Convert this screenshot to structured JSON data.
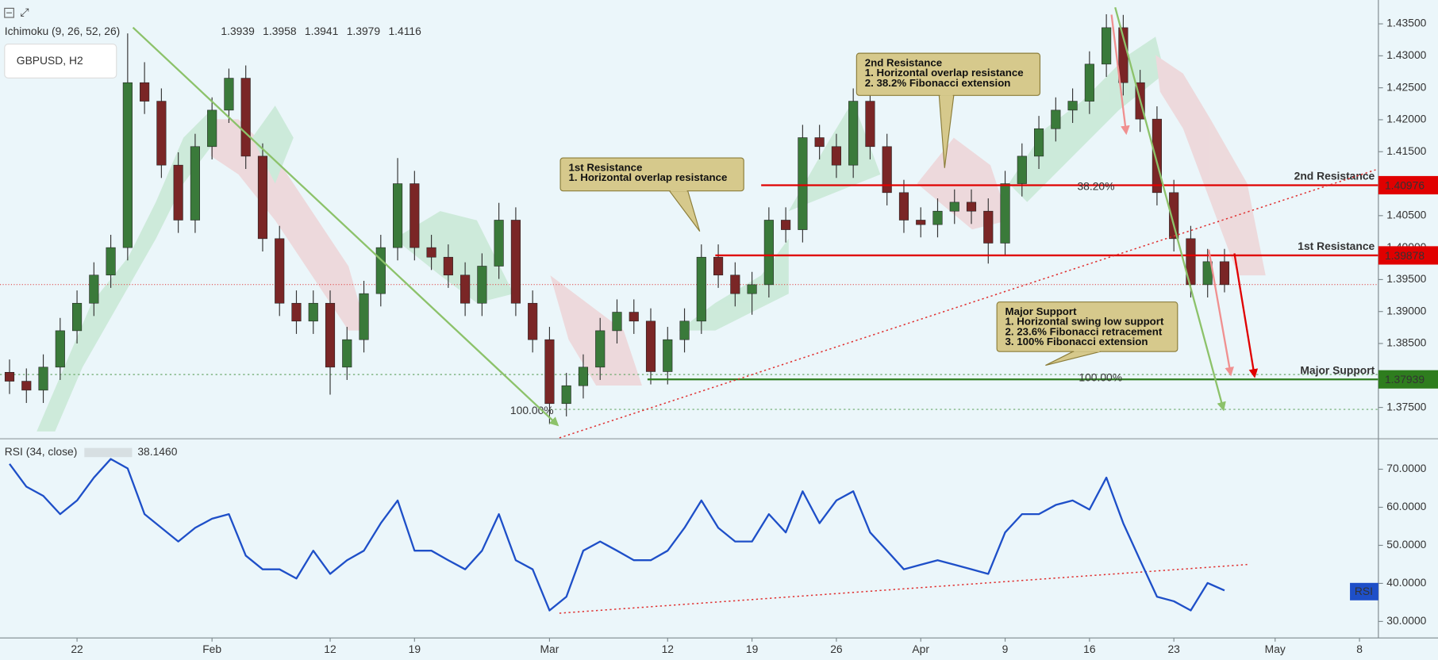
{
  "chart_data": [
    {
      "type": "candlestick",
      "title": "GBPUSD, H2",
      "indicator": "Ichimoku (9, 26, 52, 26)",
      "indicator_values": [
        {
          "label": "1.3939",
          "color": "#2196f3"
        },
        {
          "label": "1.3958",
          "color": "#880e0e"
        },
        {
          "label": "1.3941",
          "color": "#388e3c"
        },
        {
          "label": "1.3979",
          "color": "#1b5e20"
        },
        {
          "label": "1.4116",
          "color": "#e00000"
        }
      ],
      "up_color": "#3a7a3a",
      "down_color": "#7a2626",
      "x": [
        -4,
        -3,
        -2,
        -1,
        0,
        1,
        2,
        3,
        4,
        5,
        6,
        7,
        8,
        9,
        10,
        11,
        12,
        13,
        14,
        15,
        16,
        17,
        18,
        19,
        20,
        21,
        22,
        23,
        24,
        25,
        26,
        27,
        28,
        29,
        30,
        31,
        32,
        33,
        34,
        35,
        36,
        37,
        38,
        39,
        40,
        41,
        42,
        43,
        44,
        45,
        46,
        47,
        48,
        49,
        50,
        51,
        52,
        53,
        54,
        55,
        56,
        57,
        58,
        59,
        60,
        61,
        62,
        63,
        64,
        65,
        66,
        67,
        68
      ],
      "open": [
        1.3805,
        1.3791,
        1.3777,
        1.3813,
        1.387,
        1.3913,
        1.3957,
        1.4,
        1.4258,
        1.4229,
        1.4129,
        1.4043,
        1.4158,
        1.4215,
        1.4265,
        1.4143,
        1.4014,
        1.3913,
        1.3885,
        1.3913,
        1.3813,
        1.3856,
        1.3928,
        1.4,
        1.41,
        1.4,
        1.3985,
        1.3957,
        1.3913,
        1.3971,
        1.4043,
        1.3913,
        1.3856,
        1.3756,
        1.3784,
        1.3813,
        1.387,
        1.3899,
        1.3885,
        1.3806,
        1.3856,
        1.3885,
        1.3985,
        1.3957,
        1.3928,
        1.3942,
        1.4043,
        1.4028,
        1.4172,
        1.4158,
        1.4129,
        1.4229,
        1.4158,
        1.4086,
        1.4043,
        1.4036,
        1.4057,
        1.4071,
        1.4057,
        1.4007,
        1.41,
        1.4143,
        1.4186,
        1.4215,
        1.4229,
        1.4287,
        1.4344,
        1.4258,
        1.4201,
        1.4086,
        1.4014,
        1.3942,
        1.3978
      ],
      "high": [
        1.3825,
        1.3811,
        1.3833,
        1.389,
        1.3933,
        1.3977,
        1.402,
        1.4335,
        1.429,
        1.4249,
        1.4149,
        1.4178,
        1.4235,
        1.428,
        1.4285,
        1.4163,
        1.4034,
        1.3933,
        1.3933,
        1.3933,
        1.3876,
        1.3948,
        1.402,
        1.414,
        1.412,
        1.402,
        1.4005,
        1.3977,
        1.3991,
        1.407,
        1.4063,
        1.3933,
        1.3876,
        1.3804,
        1.3833,
        1.389,
        1.3919,
        1.3919,
        1.3905,
        1.3876,
        1.3905,
        1.4005,
        1.4005,
        1.3977,
        1.3962,
        1.4063,
        1.4063,
        1.4192,
        1.4192,
        1.4178,
        1.4249,
        1.4249,
        1.4178,
        1.4106,
        1.4063,
        1.4077,
        1.4091,
        1.4091,
        1.4077,
        1.412,
        1.4163,
        1.4206,
        1.4235,
        1.4249,
        1.4307,
        1.4365,
        1.4364,
        1.4278,
        1.4221,
        1.4106,
        1.4034,
        1.3998,
        1.3998
      ],
      "low": [
        1.3771,
        1.3757,
        1.3757,
        1.3793,
        1.385,
        1.3893,
        1.3937,
        1.398,
        1.4209,
        1.4109,
        1.4023,
        1.4023,
        1.4138,
        1.4195,
        1.4123,
        1.3994,
        1.3893,
        1.3865,
        1.3865,
        1.377,
        1.3793,
        1.3836,
        1.3908,
        1.398,
        1.398,
        1.3965,
        1.3937,
        1.3893,
        1.3893,
        1.3951,
        1.3893,
        1.3836,
        1.3724,
        1.3736,
        1.3764,
        1.3793,
        1.385,
        1.3865,
        1.3786,
        1.3786,
        1.3836,
        1.3865,
        1.3937,
        1.3908,
        1.3895,
        1.3922,
        1.4008,
        1.4008,
        1.4138,
        1.4109,
        1.4109,
        1.4138,
        1.4066,
        1.4023,
        1.4016,
        1.4016,
        1.4037,
        1.4037,
        1.3975,
        1.3987,
        1.408,
        1.4123,
        1.4166,
        1.4195,
        1.4209,
        1.4267,
        1.4238,
        1.4181,
        1.4066,
        1.3994,
        1.3922,
        1.3922,
        1.393
      ],
      "close": [
        1.3791,
        1.3777,
        1.3813,
        1.387,
        1.3913,
        1.3957,
        1.4,
        1.4258,
        1.4229,
        1.4129,
        1.4043,
        1.4158,
        1.4215,
        1.4265,
        1.4143,
        1.4014,
        1.3913,
        1.3885,
        1.3913,
        1.3813,
        1.3856,
        1.3928,
        1.4,
        1.41,
        1.4,
        1.3985,
        1.3957,
        1.3913,
        1.3971,
        1.4043,
        1.3913,
        1.3856,
        1.3756,
        1.3784,
        1.3813,
        1.387,
        1.3899,
        1.3885,
        1.3806,
        1.3856,
        1.3885,
        1.3985,
        1.3957,
        1.3928,
        1.3942,
        1.4043,
        1.4028,
        1.4172,
        1.4158,
        1.4129,
        1.4229,
        1.4158,
        1.4086,
        1.4043,
        1.4036,
        1.4057,
        1.4071,
        1.4057,
        1.4007,
        1.41,
        1.4143,
        1.4186,
        1.4215,
        1.4229,
        1.4287,
        1.4344,
        1.4258,
        1.4201,
        1.4086,
        1.4014,
        1.3942,
        1.3978,
        1.3942
      ],
      "xlim": [
        -4.565,
        77.12
      ],
      "xticks": [
        {
          "value": 0,
          "label": "22"
        },
        {
          "value": 8,
          "label": "Feb"
        },
        {
          "value": 15,
          "label": "12"
        },
        {
          "value": 20,
          "label": "19"
        },
        {
          "value": 28,
          "label": "Mar"
        },
        {
          "value": 35,
          "label": "12"
        },
        {
          "value": 40,
          "label": "19"
        },
        {
          "value": 45,
          "label": "26"
        },
        {
          "value": 50,
          "label": "Apr"
        },
        {
          "value": 55,
          "label": "9"
        },
        {
          "value": 60,
          "label": "16"
        },
        {
          "value": 65,
          "label": "23"
        },
        {
          "value": 71,
          "label": "May"
        },
        {
          "value": 76,
          "label": "8"
        }
      ],
      "ylim": [
        1.37024,
        1.43873
      ],
      "yticks": [
        {
          "value": 1.375,
          "label": "1.37500"
        },
        {
          "value": 1.38,
          "label": "1.38000"
        },
        {
          "value": 1.385,
          "label": "1.38500"
        },
        {
          "value": 1.39,
          "label": "1.39000"
        },
        {
          "value": 1.395,
          "label": "1.39500"
        },
        {
          "value": 1.4,
          "label": "1.40000"
        },
        {
          "value": 1.405,
          "label": "1.40500"
        },
        {
          "value": 1.41,
          "label": "1.41000"
        },
        {
          "value": 1.415,
          "label": "1.41500"
        },
        {
          "value": 1.42,
          "label": "1.42000"
        },
        {
          "value": 1.425,
          "label": "1.42500"
        },
        {
          "value": 1.43,
          "label": "1.43000"
        },
        {
          "value": 1.435,
          "label": "1.43500"
        }
      ],
      "levels": [
        {
          "name": "2nd Resistance",
          "value": 1.40976,
          "color": "#e00000"
        },
        {
          "name": "1st Resistance",
          "value": 1.39878,
          "color": "#e00000"
        },
        {
          "name": "Major Support",
          "value": 1.37939,
          "color": "#2e7d1e"
        }
      ],
      "fib_labels": [
        "38.20%",
        "100.00%",
        "100.00%"
      ],
      "annotations": [
        {
          "lines": [
            "1st Resistance",
            "1. Horizontal overlap resistance"
          ]
        },
        {
          "lines": [
            "2nd Resistance",
            "1. Horizontal overlap resistance",
            "2. 38.2% Fibonacci extension"
          ]
        },
        {
          "lines": [
            "Major Support",
            "1. Horizontal swing low support",
            "2. 23.6% Fibonacci retracement",
            "3. 100% Fibonacci extension"
          ]
        }
      ]
    },
    {
      "type": "line",
      "title": "RSI (34, close)",
      "current": "38.1460",
      "x": [
        -4,
        -3,
        -2,
        -1,
        0,
        1,
        2,
        3,
        4,
        5,
        6,
        7,
        8,
        9,
        10,
        11,
        12,
        13,
        14,
        15,
        16,
        17,
        18,
        19,
        20,
        21,
        22,
        23,
        24,
        25,
        26,
        27,
        28,
        29,
        30,
        31,
        32,
        33,
        34,
        35,
        36,
        37,
        38,
        39,
        40,
        41,
        42,
        43,
        44,
        45,
        46,
        47,
        48,
        49,
        50,
        51,
        52,
        53,
        54,
        55,
        56,
        57,
        58,
        59,
        60,
        61,
        62,
        63,
        64,
        65,
        66,
        67,
        68
      ],
      "series": [
        {
          "name": "RSI",
          "color": "#1e4fc8",
          "values": [
            71.4,
            65.4,
            63.0,
            58.2,
            61.8,
            67.8,
            72.7,
            70.2,
            58.2,
            54.6,
            51.0,
            54.6,
            57.0,
            58.2,
            47.3,
            43.7,
            43.7,
            41.3,
            48.6,
            42.5,
            46.1,
            48.6,
            55.8,
            61.8,
            48.6,
            48.6,
            46.1,
            43.7,
            48.6,
            58.2,
            46.1,
            43.7,
            32.9,
            36.5,
            48.6,
            51.0,
            48.6,
            46.1,
            46.1,
            48.6,
            54.6,
            61.8,
            54.6,
            51.0,
            51.0,
            58.2,
            53.4,
            64.2,
            55.8,
            61.8,
            64.2,
            53.4,
            48.6,
            43.7,
            44.9,
            46.1,
            44.9,
            43.7,
            42.5,
            53.4,
            58.2,
            58.2,
            60.6,
            61.8,
            59.4,
            67.8,
            55.8,
            46.1,
            36.5,
            35.3,
            32.9,
            40.1,
            38.146
          ]
        }
      ],
      "xlim": [
        -4.565,
        77.12
      ],
      "ylim": [
        25.66,
        78.0
      ],
      "yticks": [
        {
          "value": 30,
          "label": "30.0000"
        },
        {
          "value": 40,
          "label": "40.0000"
        },
        {
          "value": 50,
          "label": "50.0000"
        },
        {
          "value": 60,
          "label": "60.0000"
        },
        {
          "value": 70,
          "label": "70.0000"
        }
      ]
    }
  ]
}
